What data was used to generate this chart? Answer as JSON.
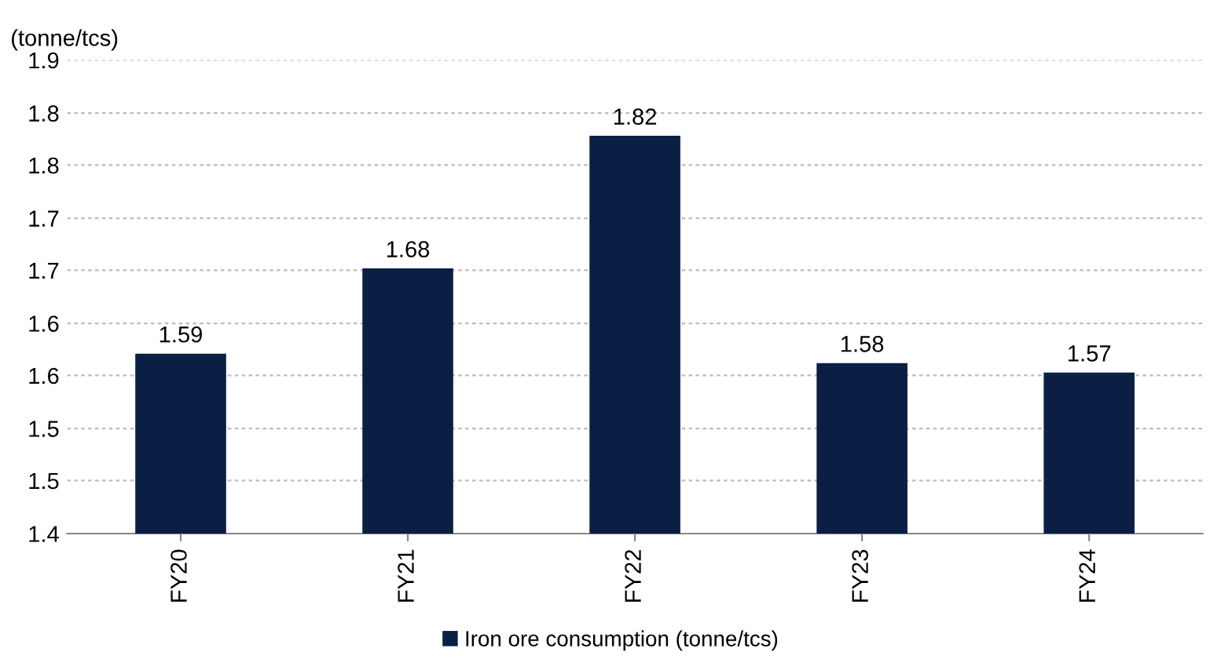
{
  "chart_data": {
    "type": "bar",
    "ylabel": "(tonne/tcs)",
    "categories": [
      "FY20",
      "FY21",
      "FY22",
      "FY23",
      "FY24"
    ],
    "series": [
      {
        "name": "Iron ore consumption (tonne/tcs)",
        "color": "#0b1f45",
        "values": [
          1.59,
          1.68,
          1.82,
          1.58,
          1.57
        ]
      }
    ],
    "ylim": [
      1.4,
      1.9
    ],
    "yticks": [
      1.4,
      {
        "value": 1.456,
        "label": "1.5"
      },
      {
        "value": 1.511,
        "label": "1.5"
      },
      {
        "value": 1.567,
        "label": "1.6"
      },
      {
        "value": 1.622,
        "label": "1.6"
      },
      {
        "value": 1.678,
        "label": "1.7"
      },
      {
        "value": 1.733,
        "label": "1.7"
      },
      {
        "value": 1.789,
        "label": "1.8"
      },
      {
        "value": 1.844,
        "label": "1.8"
      },
      1.9
    ],
    "grid": "y",
    "legend": "bottom",
    "data_labels": true
  }
}
